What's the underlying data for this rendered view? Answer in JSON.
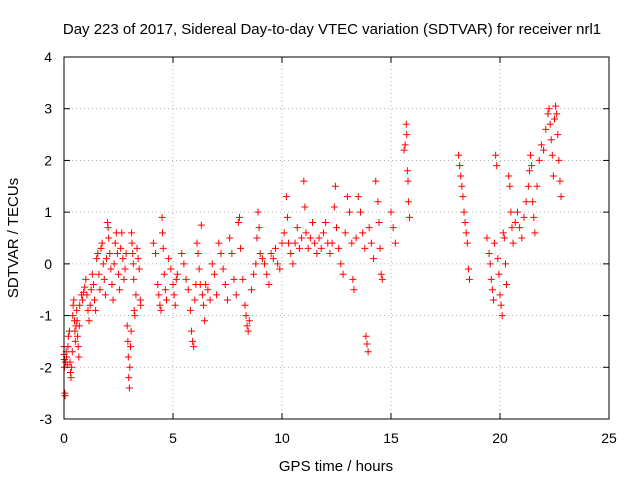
{
  "chart_data": {
    "type": "scatter",
    "title": "Day 223 of 2017, Sidereal Day-to-day VTEC variation (SDTVAR) for receiver nrl1",
    "xlabel": "GPS time / hours",
    "ylabel": "SDTVAR / TECUs",
    "xlim": [
      0,
      25
    ],
    "ylim": [
      -3,
      4
    ],
    "xticks": [
      0,
      5,
      10,
      15,
      20,
      25
    ],
    "yticks": [
      -3,
      -2,
      -1,
      0,
      1,
      2,
      3,
      4
    ],
    "xtick_labels": [
      "0",
      "5",
      "10",
      "15",
      "20",
      "25"
    ],
    "ytick_labels": [
      "-3",
      "-2",
      "-1",
      "0",
      "1",
      "2",
      "3",
      "4"
    ],
    "grid": true,
    "marker": "plus",
    "color": "#ff0000",
    "series": [
      {
        "name": "SDTVAR",
        "points": [
          [
            0.0,
            -1.6
          ],
          [
            0.0,
            -1.75
          ],
          [
            0.02,
            -1.85
          ],
          [
            0.02,
            -2.0
          ],
          [
            0.04,
            -2.5
          ],
          [
            0.05,
            -2.55
          ],
          [
            0.07,
            -1.9
          ],
          [
            0.1,
            -1.7
          ],
          [
            0.12,
            -1.8
          ],
          [
            0.15,
            -1.95
          ],
          [
            0.18,
            -1.6
          ],
          [
            0.2,
            -1.4
          ],
          [
            0.25,
            -1.3
          ],
          [
            0.28,
            -1.9
          ],
          [
            0.3,
            -2.1
          ],
          [
            0.32,
            -2.2
          ],
          [
            0.35,
            -2.0
          ],
          [
            0.38,
            -1.7
          ],
          [
            0.4,
            -1.0
          ],
          [
            0.42,
            -0.8
          ],
          [
            0.45,
            -0.7
          ],
          [
            0.48,
            -1.1
          ],
          [
            0.5,
            -1.3
          ],
          [
            0.52,
            -1.5
          ],
          [
            0.55,
            -1.2
          ],
          [
            0.58,
            -0.9
          ],
          [
            0.6,
            -1.1
          ],
          [
            0.62,
            -1.4
          ],
          [
            0.65,
            -1.6
          ],
          [
            0.68,
            -1.8
          ],
          [
            0.7,
            -1.2
          ],
          [
            0.72,
            -0.8
          ],
          [
            0.8,
            -0.6
          ],
          [
            0.85,
            -0.7
          ],
          [
            0.9,
            -0.55
          ],
          [
            0.95,
            -0.45
          ],
          [
            1.0,
            -0.3
          ],
          [
            1.05,
            -0.6
          ],
          [
            1.1,
            -0.9
          ],
          [
            1.15,
            -1.1
          ],
          [
            1.2,
            -0.8
          ],
          [
            1.25,
            -0.5
          ],
          [
            1.3,
            -0.2
          ],
          [
            1.35,
            -0.4
          ],
          [
            1.4,
            -0.7
          ],
          [
            1.45,
            -0.9
          ],
          [
            1.5,
            0.1
          ],
          [
            1.55,
            0.2
          ],
          [
            1.6,
            -0.2
          ],
          [
            1.65,
            -0.5
          ],
          [
            1.7,
            0.3
          ],
          [
            1.75,
            0.4
          ],
          [
            1.8,
            0.0
          ],
          [
            1.85,
            -0.3
          ],
          [
            1.9,
            -0.6
          ],
          [
            1.95,
            0.1
          ],
          [
            2.0,
            0.8
          ],
          [
            2.02,
            0.7
          ],
          [
            2.05,
            0.5
          ],
          [
            2.1,
            0.2
          ],
          [
            2.15,
            -0.1
          ],
          [
            2.2,
            -0.4
          ],
          [
            2.25,
            -0.7
          ],
          [
            2.3,
            0.0
          ],
          [
            2.35,
            0.4
          ],
          [
            2.4,
            0.6
          ],
          [
            2.45,
            0.2
          ],
          [
            2.5,
            -0.2
          ],
          [
            2.55,
            -0.5
          ],
          [
            2.6,
            0.3
          ],
          [
            2.65,
            0.6
          ],
          [
            2.7,
            0.1
          ],
          [
            2.75,
            -0.3
          ],
          [
            2.8,
            -0.1
          ],
          [
            2.85,
            0.2
          ],
          [
            2.9,
            -1.2
          ],
          [
            2.93,
            -1.5
          ],
          [
            2.95,
            -1.8
          ],
          [
            2.97,
            -2.2
          ],
          [
            3.0,
            -2.4
          ],
          [
            3.02,
            -2.0
          ],
          [
            3.05,
            -1.6
          ],
          [
            3.08,
            -1.3
          ],
          [
            3.1,
            0.6
          ],
          [
            3.12,
            0.4
          ],
          [
            3.15,
            0.2
          ],
          [
            3.18,
            0.0
          ],
          [
            3.2,
            -0.3
          ],
          [
            3.22,
            -0.9
          ],
          [
            3.25,
            -1.0
          ],
          [
            3.3,
            -0.6
          ],
          [
            3.35,
            0.3
          ],
          [
            3.4,
            0.1
          ],
          [
            3.45,
            -0.1
          ],
          [
            3.5,
            -0.7
          ],
          [
            3.52,
            -0.8
          ],
          [
            4.1,
            0.4
          ],
          [
            4.2,
            0.2
          ],
          [
            4.3,
            -0.4
          ],
          [
            4.35,
            -0.6
          ],
          [
            4.4,
            -0.8
          ],
          [
            4.45,
            -0.9
          ],
          [
            4.5,
            0.9
          ],
          [
            4.52,
            0.6
          ],
          [
            4.55,
            0.3
          ],
          [
            4.6,
            -0.2
          ],
          [
            4.65,
            -0.5
          ],
          [
            4.7,
            -0.7
          ],
          [
            4.8,
            0.1
          ],
          [
            4.9,
            -0.1
          ],
          [
            5.0,
            -0.4
          ],
          [
            5.05,
            -0.6
          ],
          [
            5.1,
            -0.8
          ],
          [
            5.15,
            -0.3
          ],
          [
            5.2,
            -0.2
          ],
          [
            5.4,
            0.2
          ],
          [
            5.5,
            0.0
          ],
          [
            5.6,
            -0.3
          ],
          [
            5.7,
            -0.5
          ],
          [
            5.8,
            -0.9
          ],
          [
            5.85,
            -1.3
          ],
          [
            5.9,
            -1.5
          ],
          [
            5.95,
            -1.6
          ],
          [
            6.0,
            -0.7
          ],
          [
            6.05,
            -0.4
          ],
          [
            6.1,
            0.4
          ],
          [
            6.15,
            0.2
          ],
          [
            6.2,
            -0.1
          ],
          [
            6.25,
            -0.4
          ],
          [
            6.3,
            0.75
          ],
          [
            6.35,
            -0.6
          ],
          [
            6.4,
            -0.8
          ],
          [
            6.45,
            -1.1
          ],
          [
            6.5,
            -0.4
          ],
          [
            6.6,
            -0.5
          ],
          [
            6.7,
            -0.7
          ],
          [
            6.8,
            0.0
          ],
          [
            6.9,
            -0.2
          ],
          [
            7.0,
            -0.6
          ],
          [
            7.1,
            0.4
          ],
          [
            7.2,
            0.2
          ],
          [
            7.3,
            -0.1
          ],
          [
            7.4,
            -0.4
          ],
          [
            7.5,
            -0.7
          ],
          [
            7.6,
            0.5
          ],
          [
            7.7,
            0.2
          ],
          [
            7.8,
            -0.3
          ],
          [
            7.9,
            -0.6
          ],
          [
            8.0,
            0.8
          ],
          [
            8.05,
            0.9
          ],
          [
            8.1,
            0.3
          ],
          [
            8.2,
            -0.3
          ],
          [
            8.3,
            -0.8
          ],
          [
            8.35,
            -1.0
          ],
          [
            8.4,
            -1.2
          ],
          [
            8.45,
            -1.3
          ],
          [
            8.5,
            -1.1
          ],
          [
            8.6,
            -0.5
          ],
          [
            8.7,
            -0.2
          ],
          [
            8.8,
            0.0
          ],
          [
            8.85,
            0.5
          ],
          [
            8.9,
            1.0
          ],
          [
            8.95,
            0.7
          ],
          [
            9.0,
            0.2
          ],
          [
            9.1,
            0.1
          ],
          [
            9.2,
            0.0
          ],
          [
            9.3,
            -0.2
          ],
          [
            9.4,
            -0.4
          ],
          [
            9.5,
            0.2
          ],
          [
            9.6,
            0.1
          ],
          [
            9.7,
            0.3
          ],
          [
            9.8,
            0.0
          ],
          [
            9.9,
            -0.1
          ],
          [
            10.0,
            0.4
          ],
          [
            10.1,
            0.6
          ],
          [
            10.2,
            1.3
          ],
          [
            10.25,
            0.9
          ],
          [
            10.3,
            0.4
          ],
          [
            10.4,
            0.2
          ],
          [
            10.5,
            0.0
          ],
          [
            10.6,
            0.4
          ],
          [
            10.7,
            0.7
          ],
          [
            10.8,
            0.3
          ],
          [
            10.9,
            0.5
          ],
          [
            11.0,
            1.6
          ],
          [
            11.05,
            1.1
          ],
          [
            11.1,
            0.6
          ],
          [
            11.2,
            0.3
          ],
          [
            11.3,
            0.5
          ],
          [
            11.4,
            0.8
          ],
          [
            11.5,
            0.4
          ],
          [
            11.6,
            0.2
          ],
          [
            11.7,
            0.5
          ],
          [
            11.8,
            0.3
          ],
          [
            11.9,
            0.6
          ],
          [
            12.0,
            0.8
          ],
          [
            12.1,
            0.4
          ],
          [
            12.2,
            0.2
          ],
          [
            12.3,
            0.4
          ],
          [
            12.4,
            1.1
          ],
          [
            12.45,
            1.5
          ],
          [
            12.5,
            0.7
          ],
          [
            12.6,
            0.3
          ],
          [
            12.7,
            0.0
          ],
          [
            12.8,
            -0.2
          ],
          [
            12.9,
            0.6
          ],
          [
            13.0,
            1.3
          ],
          [
            13.1,
            1.0
          ],
          [
            13.2,
            0.4
          ],
          [
            13.25,
            -0.3
          ],
          [
            13.3,
            -0.5
          ],
          [
            13.4,
            0.5
          ],
          [
            13.5,
            1.3
          ],
          [
            13.6,
            1.0
          ],
          [
            13.7,
            0.6
          ],
          [
            13.8,
            0.3
          ],
          [
            13.85,
            -1.4
          ],
          [
            13.9,
            -1.55
          ],
          [
            13.95,
            -1.7
          ],
          [
            14.0,
            0.7
          ],
          [
            14.1,
            0.4
          ],
          [
            14.2,
            0.1
          ],
          [
            14.3,
            1.6
          ],
          [
            14.4,
            1.2
          ],
          [
            14.45,
            0.8
          ],
          [
            14.5,
            0.3
          ],
          [
            14.55,
            -0.2
          ],
          [
            14.6,
            -0.3
          ],
          [
            15.0,
            1.0
          ],
          [
            15.1,
            0.7
          ],
          [
            15.2,
            0.4
          ],
          [
            15.6,
            2.2
          ],
          [
            15.65,
            2.3
          ],
          [
            15.7,
            2.7
          ],
          [
            15.72,
            2.5
          ],
          [
            15.75,
            1.8
          ],
          [
            15.78,
            1.6
          ],
          [
            15.8,
            1.2
          ],
          [
            15.85,
            0.9
          ],
          [
            18.1,
            2.1
          ],
          [
            18.15,
            1.9
          ],
          [
            18.2,
            1.7
          ],
          [
            18.25,
            1.5
          ],
          [
            18.3,
            1.3
          ],
          [
            18.35,
            1.0
          ],
          [
            18.4,
            0.8
          ],
          [
            18.45,
            0.6
          ],
          [
            18.5,
            0.4
          ],
          [
            18.55,
            -0.1
          ],
          [
            18.6,
            -0.3
          ],
          [
            19.4,
            0.5
          ],
          [
            19.5,
            0.2
          ],
          [
            19.55,
            0.0
          ],
          [
            19.6,
            -0.3
          ],
          [
            19.65,
            -0.5
          ],
          [
            19.7,
            -0.7
          ],
          [
            19.75,
            0.4
          ],
          [
            19.8,
            2.1
          ],
          [
            19.85,
            1.9
          ],
          [
            19.9,
            0.1
          ],
          [
            19.95,
            -0.2
          ],
          [
            20.0,
            -0.6
          ],
          [
            20.05,
            -0.8
          ],
          [
            20.1,
            -1.0
          ],
          [
            20.15,
            0.6
          ],
          [
            20.2,
            0.5
          ],
          [
            20.25,
            0.0
          ],
          [
            20.3,
            -0.4
          ],
          [
            20.4,
            1.7
          ],
          [
            20.45,
            1.5
          ],
          [
            20.5,
            1.0
          ],
          [
            20.55,
            0.7
          ],
          [
            20.6,
            0.4
          ],
          [
            20.7,
            0.8
          ],
          [
            20.8,
            1.0
          ],
          [
            20.9,
            0.7
          ],
          [
            21.0,
            0.5
          ],
          [
            21.1,
            0.9
          ],
          [
            21.2,
            1.2
          ],
          [
            21.3,
            1.5
          ],
          [
            21.35,
            1.8
          ],
          [
            21.4,
            2.1
          ],
          [
            21.45,
            1.9
          ],
          [
            21.5,
            1.2
          ],
          [
            21.55,
            0.9
          ],
          [
            21.6,
            0.6
          ],
          [
            21.7,
            1.5
          ],
          [
            21.8,
            2.0
          ],
          [
            21.9,
            2.3
          ],
          [
            22.0,
            2.2
          ],
          [
            22.1,
            2.6
          ],
          [
            22.2,
            2.9
          ],
          [
            22.25,
            3.0
          ],
          [
            22.3,
            2.7
          ],
          [
            22.35,
            2.4
          ],
          [
            22.4,
            2.1
          ],
          [
            22.45,
            1.7
          ],
          [
            22.5,
            2.8
          ],
          [
            22.55,
            3.05
          ],
          [
            22.6,
            2.9
          ],
          [
            22.65,
            2.5
          ],
          [
            22.7,
            2.0
          ],
          [
            22.75,
            1.6
          ],
          [
            22.8,
            1.3
          ]
        ]
      }
    ]
  }
}
